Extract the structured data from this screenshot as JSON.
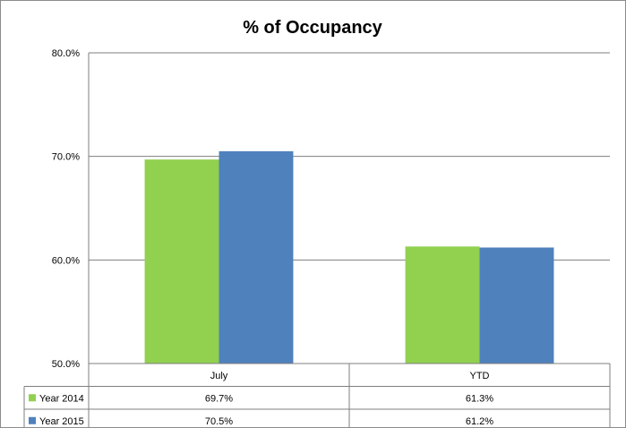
{
  "chart_data": {
    "type": "bar",
    "title": "% of Occupancy",
    "categories": [
      "July",
      "YTD"
    ],
    "series": [
      {
        "name": "Year 2014",
        "values": [
          69.7,
          61.3
        ],
        "labels": [
          "69.7%",
          "61.3%"
        ],
        "color": "#92d050"
      },
      {
        "name": "Year 2015",
        "values": [
          70.5,
          61.2
        ],
        "labels": [
          "70.5%",
          "61.2%"
        ],
        "color": "#4f81bd"
      }
    ],
    "ylim": [
      50,
      80
    ],
    "yticks": [
      50,
      60,
      70,
      80
    ],
    "ytick_labels": [
      "50.0%",
      "60.0%",
      "70.0%",
      "80.0%"
    ],
    "grid": true,
    "legend": "data-table"
  }
}
